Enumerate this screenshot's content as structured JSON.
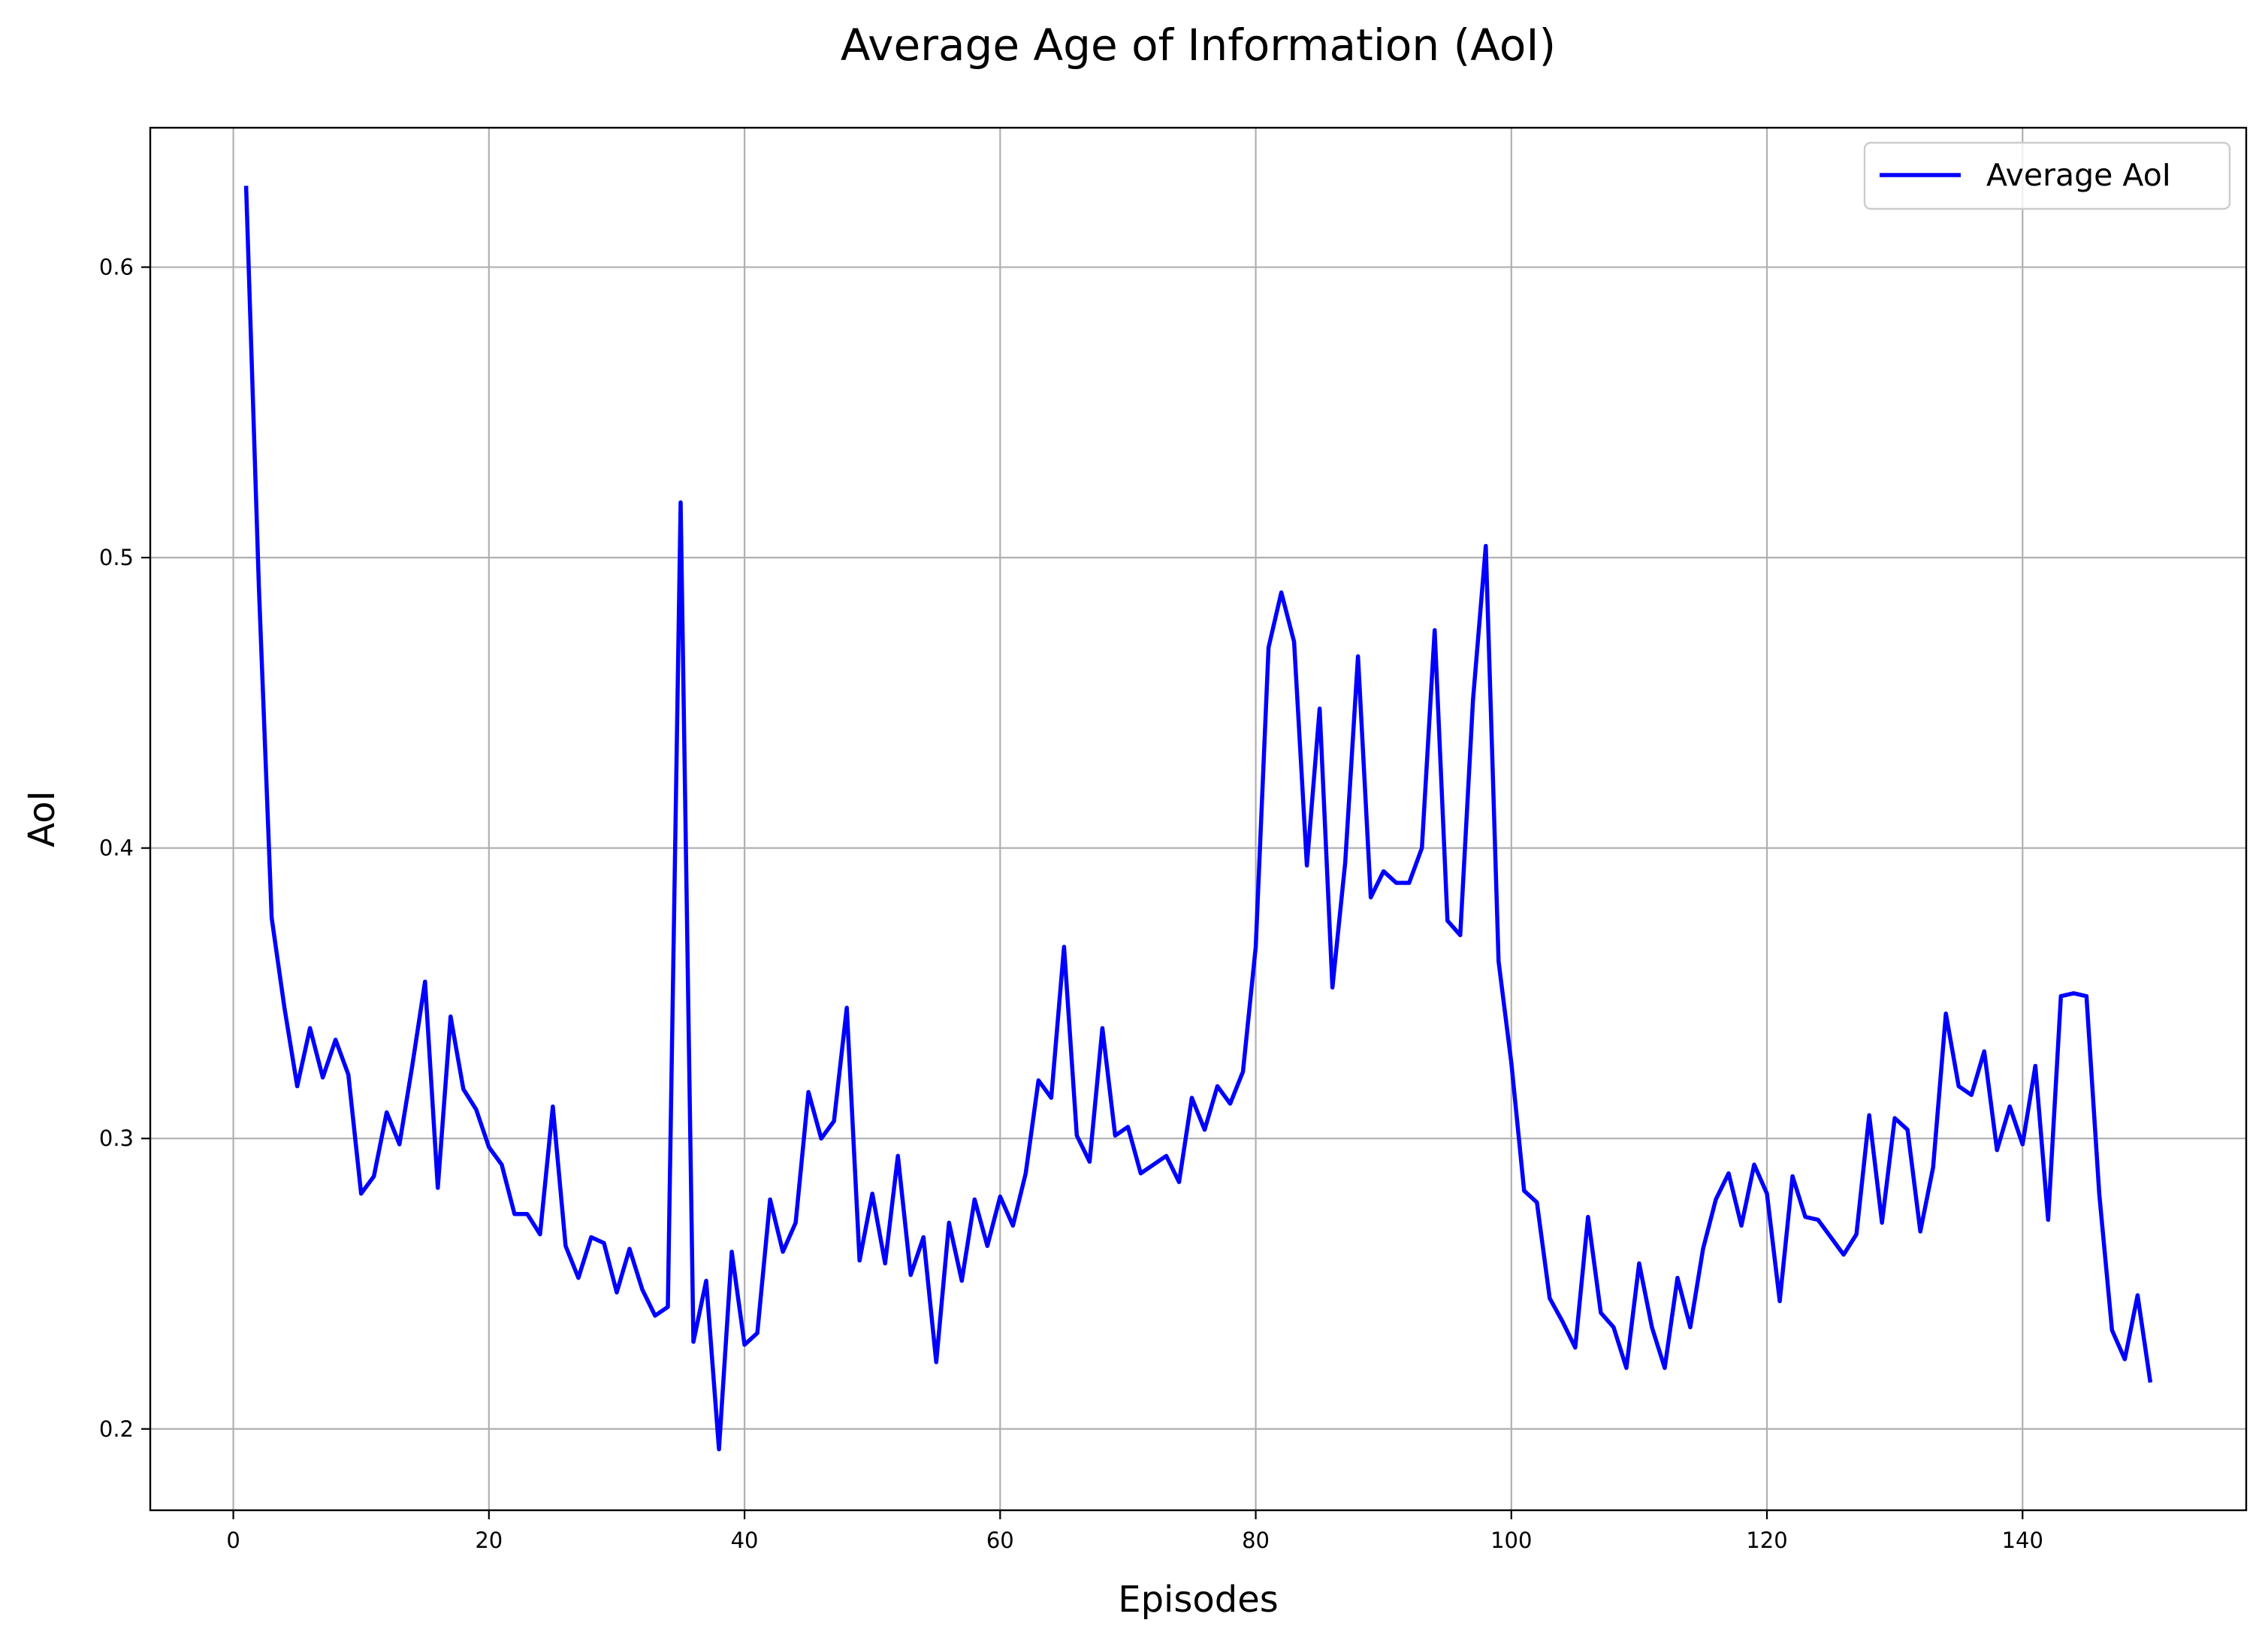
{
  "chart_data": {
    "type": "line",
    "title": "Average Age of Information (AoI)",
    "xlabel": "Episodes",
    "ylabel": "AoI",
    "xlim": [
      -6.5,
      157.5
    ],
    "ylim": [
      0.172,
      0.648
    ],
    "xticks": [
      0,
      20,
      40,
      60,
      80,
      100,
      120,
      140
    ],
    "yticks": [
      0.2,
      0.3,
      0.4,
      0.5,
      0.6
    ],
    "ytick_labels": [
      "0.2",
      "0.3",
      "0.4",
      "0.5",
      "0.6"
    ],
    "grid": true,
    "legend_position": "upper right",
    "series": [
      {
        "name": "Average AoI",
        "color": "#0000ff",
        "x": [
          1,
          2,
          3,
          4,
          5,
          6,
          7,
          8,
          9,
          10,
          11,
          12,
          13,
          14,
          15,
          16,
          17,
          18,
          19,
          20,
          21,
          22,
          23,
          24,
          25,
          26,
          27,
          28,
          29,
          30,
          31,
          32,
          33,
          34,
          35,
          36,
          37,
          38,
          39,
          40,
          41,
          42,
          43,
          44,
          45,
          46,
          47,
          48,
          49,
          50,
          51,
          52,
          53,
          54,
          55,
          56,
          57,
          58,
          59,
          60,
          61,
          62,
          63,
          64,
          65,
          66,
          67,
          68,
          69,
          70,
          71,
          72,
          73,
          74,
          75,
          76,
          77,
          78,
          79,
          80,
          81,
          82,
          83,
          84,
          85,
          86,
          87,
          88,
          89,
          90,
          91,
          92,
          93,
          94,
          95,
          96,
          97,
          98,
          99,
          100,
          101,
          102,
          103,
          104,
          105,
          106,
          107,
          108,
          109,
          110,
          111,
          112,
          113,
          114,
          115,
          116,
          117,
          118,
          119,
          120,
          121,
          122,
          123,
          124,
          125,
          126,
          127,
          128,
          129,
          130,
          131,
          132,
          133,
          134,
          135,
          136,
          137,
          138,
          139,
          140,
          141,
          142,
          143,
          144,
          145,
          146,
          147,
          148,
          149,
          150
        ],
        "values": [
          0.628,
          0.49,
          0.376,
          0.345,
          0.318,
          0.338,
          0.321,
          0.334,
          0.322,
          0.281,
          0.287,
          0.309,
          0.298,
          0.325,
          0.354,
          0.283,
          0.342,
          0.317,
          0.31,
          0.297,
          0.291,
          0.274,
          0.274,
          0.267,
          0.311,
          0.263,
          0.252,
          0.266,
          0.264,
          0.247,
          0.262,
          0.248,
          0.239,
          0.242,
          0.519,
          0.23,
          0.251,
          0.193,
          0.261,
          0.229,
          0.233,
          0.279,
          0.261,
          0.271,
          0.316,
          0.3,
          0.306,
          0.345,
          0.258,
          0.281,
          0.257,
          0.294,
          0.253,
          0.266,
          0.223,
          0.271,
          0.251,
          0.279,
          0.263,
          0.28,
          0.27,
          0.288,
          0.32,
          0.314,
          0.366,
          0.301,
          0.292,
          0.338,
          0.301,
          0.304,
          0.288,
          0.291,
          0.294,
          0.285,
          0.314,
          0.303,
          0.318,
          0.312,
          0.323,
          0.366,
          0.469,
          0.488,
          0.471,
          0.394,
          0.448,
          0.352,
          0.395,
          0.466,
          0.383,
          0.392,
          0.388,
          0.388,
          0.4,
          0.475,
          0.375,
          0.37,
          0.451,
          0.504,
          0.361,
          0.326,
          0.282,
          0.278,
          0.245,
          0.237,
          0.228,
          0.273,
          0.24,
          0.235,
          0.221,
          0.257,
          0.235,
          0.221,
          0.252,
          0.235,
          0.262,
          0.279,
          0.288,
          0.27,
          0.291,
          0.281,
          0.244,
          0.287,
          0.273,
          0.272,
          0.266,
          0.26,
          0.267,
          0.308,
          0.271,
          0.307,
          0.303,
          0.268,
          0.29,
          0.343,
          0.318,
          0.315,
          0.33,
          0.296,
          0.311,
          0.298,
          0.325,
          0.272,
          0.349,
          0.35,
          0.349,
          0.281,
          0.234,
          0.224,
          0.246,
          0.216
        ]
      }
    ]
  }
}
